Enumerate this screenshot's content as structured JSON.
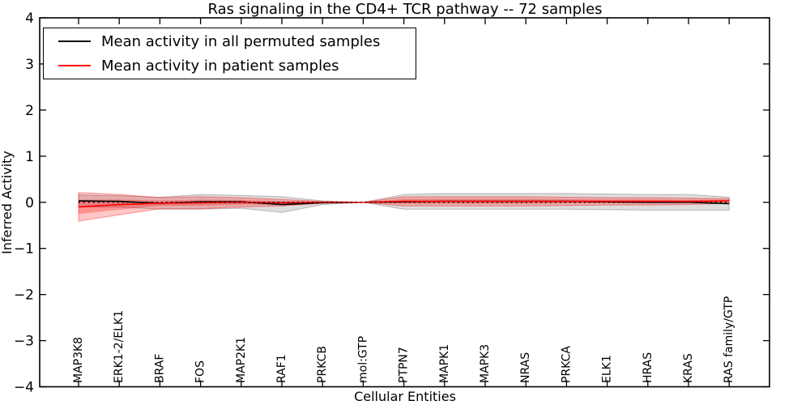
{
  "chart_data": {
    "type": "line",
    "title": "Ras signaling in the CD4+ TCR pathway -- 72 samples",
    "xlabel": "Cellular Entities",
    "ylabel": "Inferred Activity",
    "categories": [
      "MAP3K8",
      "ERK1-2/ELK1",
      "BRAF",
      "FOS",
      "MAP2K1",
      "RAF1",
      "PRKCB",
      "mol:GTP",
      "PTPN7",
      "MAPK1",
      "MAPK3",
      "NRAS",
      "PRKCA",
      "ELK1",
      "HRAS",
      "KRAS",
      "RAS family/GTP"
    ],
    "series": [
      {
        "name": "Mean activity in all permuted samples",
        "color": "#000000",
        "values": [
          0.03,
          0.02,
          -0.02,
          0.01,
          0.01,
          -0.05,
          -0.01,
          0.0,
          0.01,
          0.02,
          0.02,
          0.02,
          0.02,
          0.01,
          0.0,
          0.0,
          -0.03
        ],
        "band_halfwidth": [
          0.13,
          0.12,
          0.13,
          0.16,
          0.14,
          0.17,
          0.04,
          0.0,
          0.16,
          0.17,
          0.17,
          0.17,
          0.17,
          0.17,
          0.17,
          0.17,
          0.14
        ],
        "band_color": "#000000",
        "band_opacity": 0.13,
        "band_inner_factor": 0
      },
      {
        "name": "Mean activity in patient samples",
        "color": "#ff0000",
        "values": [
          -0.1,
          -0.05,
          -0.02,
          -0.01,
          0.0,
          -0.01,
          0.0,
          0.0,
          0.02,
          0.02,
          0.02,
          0.02,
          0.02,
          0.02,
          0.02,
          0.02,
          0.03
        ],
        "band_halfwidth": [
          0.31,
          0.22,
          0.12,
          0.13,
          0.1,
          0.07,
          0.02,
          0.0,
          0.1,
          0.1,
          0.1,
          0.1,
          0.09,
          0.08,
          0.08,
          0.07,
          0.05
        ],
        "band_color": "#ff0000",
        "band_opacity": 0.22,
        "band_inner_factor": 0.5
      }
    ],
    "legend": {
      "position": "upper left",
      "entries": [
        {
          "label": "Mean activity in all permuted samples",
          "color": "#000000"
        },
        {
          "label": "Mean activity in patient samples",
          "color": "#ff0000"
        }
      ]
    },
    "ylim": [
      -4,
      4
    ],
    "yticks": {
      "values": [
        4,
        3,
        2,
        1,
        0,
        -1,
        -2,
        -3,
        -4
      ],
      "labels": [
        "4",
        "3",
        "2",
        "1",
        "0",
        "−1",
        "−2",
        "−3",
        "−4"
      ]
    },
    "zero_line": {
      "style": "dotted",
      "color": "#000000"
    },
    "grid": false,
    "axis_color": "#000000",
    "background": "#ffffff"
  }
}
